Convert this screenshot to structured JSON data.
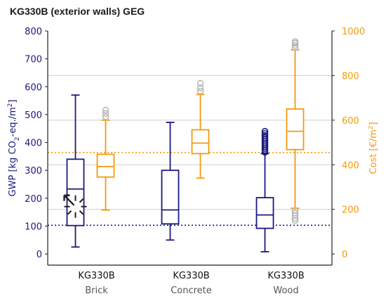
{
  "chart_data": {
    "type": "box",
    "title": "KG330B (exterior walls) GEG",
    "categories": [
      {
        "line1": "KG330B",
        "line2": "Brick"
      },
      {
        "line1": "KG330B",
        "line2": "Concrete"
      },
      {
        "line1": "KG330B",
        "line2": "Wood"
      }
    ],
    "left_axis": {
      "label": "GWP [kg CO2-eq./m2]",
      "ylim": [
        -40,
        800
      ],
      "ticks": [
        0,
        100,
        200,
        300,
        400,
        500,
        600,
        700,
        800
      ],
      "color": "#1a1a7e"
    },
    "right_axis": {
      "label": "Cost [€/m2]",
      "ylim": [
        -50,
        1000
      ],
      "ticks": [
        0,
        200,
        400,
        600,
        800,
        1000
      ],
      "color": "#f59a0c"
    },
    "gridlines_right": [
      200,
      400,
      600,
      800
    ],
    "reference_lines": [
      {
        "axis": "left",
        "value": 103,
        "style": "dotted",
        "color": "#1a1a7e"
      },
      {
        "axis": "right",
        "value": 455,
        "style": "dotted",
        "color": "#f59a0c"
      }
    ],
    "series": [
      {
        "name": "GWP",
        "axis": "left",
        "color": "#1a1a7e",
        "boxes": [
          {
            "whislo": 25,
            "q1": 102,
            "median": 233,
            "q3": 340,
            "whishi": 570,
            "fliers": []
          },
          {
            "whislo": 50,
            "q1": 108,
            "median": 158,
            "q3": 300,
            "whishi": 472,
            "fliers": []
          },
          {
            "whislo": 8,
            "q1": 92,
            "median": 140,
            "q3": 202,
            "whishi": 360,
            "fliers": [
              365,
              372,
              378,
              385,
              392,
              398,
              405,
              412,
              418,
              425,
              432,
              440
            ]
          }
        ]
      },
      {
        "name": "Cost",
        "axis": "right",
        "color": "#f59a0c",
        "fliercolor": "#b8b8b8",
        "boxes": [
          {
            "whislo": 197,
            "q1": 345,
            "median": 392,
            "q3": 447,
            "whishi": 600,
            "fliers": [
              615,
              630,
              645
            ]
          },
          {
            "whislo": 340,
            "q1": 450,
            "median": 497,
            "q3": 557,
            "whishi": 715,
            "fliers": [
              730,
              745,
              765
            ]
          },
          {
            "whislo": 205,
            "q1": 468,
            "median": 550,
            "q3": 650,
            "whishi": 915,
            "fliers": [
              195,
              183,
              172,
              160,
              150,
              925,
              935,
              945,
              952
            ]
          }
        ]
      }
    ],
    "annotation": {
      "type": "cursor-burst-icon",
      "category": 0,
      "axis": "left",
      "value": 170
    }
  }
}
